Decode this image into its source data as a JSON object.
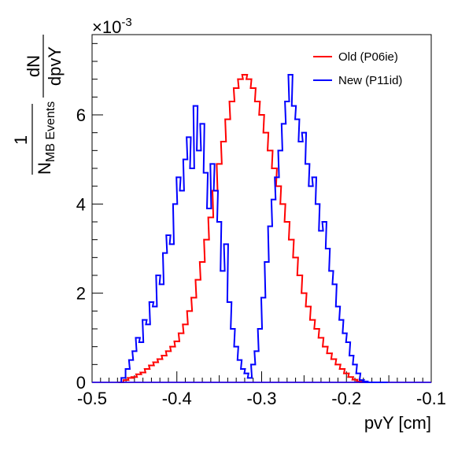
{
  "chart_data": {
    "type": "line",
    "style": "step-histogram",
    "xlabel": "pvY [cm]",
    "ylabel": "1 / N_MB Events · dN/dpvY",
    "ylabel_parts": {
      "one": "1",
      "n": "N",
      "n_sub": "MB Events",
      "dN": "dN",
      "dpvY": "dpvY"
    },
    "y_multiplier": "×10⁻³",
    "y_multiplier_parts": {
      "times": "×10",
      "exp": "-3"
    },
    "xlim": [
      -0.5,
      -0.1
    ],
    "ylim": [
      0,
      0.0078
    ],
    "x_ticks": [
      -0.5,
      -0.4,
      -0.3,
      -0.2,
      -0.1
    ],
    "x_tick_labels": [
      "-0.5",
      "-0.4",
      "-0.3",
      "-0.2",
      "-0.1"
    ],
    "y_ticks": [
      0,
      0.002,
      0.004,
      0.006
    ],
    "y_tick_labels": [
      "0",
      "2",
      "4",
      "6"
    ],
    "grid": false,
    "legend_position": "top-right",
    "series": [
      {
        "name": "Old (P06ie)",
        "color": "#ff0000",
        "x": [
          -0.466,
          -0.46,
          -0.455,
          -0.45,
          -0.445,
          -0.44,
          -0.435,
          -0.43,
          -0.425,
          -0.42,
          -0.415,
          -0.41,
          -0.405,
          -0.4,
          -0.395,
          -0.39,
          -0.385,
          -0.38,
          -0.375,
          -0.37,
          -0.365,
          -0.36,
          -0.355,
          -0.35,
          -0.345,
          -0.34,
          -0.335,
          -0.33,
          -0.325,
          -0.32,
          -0.315,
          -0.31,
          -0.305,
          -0.3,
          -0.295,
          -0.29,
          -0.285,
          -0.28,
          -0.275,
          -0.27,
          -0.265,
          -0.26,
          -0.255,
          -0.25,
          -0.245,
          -0.24,
          -0.235,
          -0.23,
          -0.225,
          -0.22,
          -0.215,
          -0.21,
          -0.205,
          -0.2,
          -0.195,
          -0.19,
          -0.185,
          -0.18
        ],
        "y": [
          0,
          5e-05,
          0.0001,
          0.00012,
          0.00018,
          0.00022,
          0.0003,
          0.00038,
          0.00045,
          0.00052,
          0.0006,
          0.0007,
          0.0008,
          0.00092,
          0.0011,
          0.0013,
          0.0016,
          0.0019,
          0.0023,
          0.0027,
          0.0032,
          0.0037,
          0.0043,
          0.0049,
          0.0054,
          0.0059,
          0.0063,
          0.0066,
          0.0068,
          0.0069,
          0.0068,
          0.0066,
          0.0063,
          0.006,
          0.0056,
          0.0052,
          0.0048,
          0.0044,
          0.004,
          0.0036,
          0.0032,
          0.0028,
          0.0024,
          0.002,
          0.0017,
          0.0014,
          0.0012,
          0.001,
          0.0008,
          0.00065,
          0.00052,
          0.0004,
          0.0003,
          0.0002,
          0.00012,
          6e-05,
          2e-05,
          0
        ]
      },
      {
        "name": "New (P11id)",
        "color": "#0000ff",
        "x": [
          -0.463,
          -0.458,
          -0.454,
          -0.45,
          -0.446,
          -0.442,
          -0.438,
          -0.434,
          -0.43,
          -0.426,
          -0.422,
          -0.418,
          -0.414,
          -0.41,
          -0.406,
          -0.402,
          -0.398,
          -0.394,
          -0.39,
          -0.386,
          -0.382,
          -0.378,
          -0.374,
          -0.37,
          -0.366,
          -0.362,
          -0.358,
          -0.354,
          -0.35,
          -0.346,
          -0.342,
          -0.338,
          -0.334,
          -0.33,
          -0.326,
          -0.322,
          -0.318,
          -0.314,
          -0.31,
          -0.306,
          -0.302,
          -0.298,
          -0.294,
          -0.29,
          -0.286,
          -0.282,
          -0.278,
          -0.274,
          -0.27,
          -0.266,
          -0.262,
          -0.258,
          -0.254,
          -0.25,
          -0.246,
          -0.242,
          -0.238,
          -0.234,
          -0.23,
          -0.226,
          -0.222,
          -0.218,
          -0.214,
          -0.21,
          -0.206,
          -0.202,
          -0.198,
          -0.194,
          -0.19,
          -0.186,
          -0.182,
          -0.178,
          -0.174,
          -0.17,
          -0.166,
          -0.162,
          -0.158,
          -0.154
        ],
        "y": [
          0.0001,
          0.0003,
          0.0005,
          0.0007,
          0.001,
          0.0009,
          0.0014,
          0.0013,
          0.0018,
          0.0017,
          0.0024,
          0.0022,
          0.0029,
          0.0033,
          0.0031,
          0.004,
          0.0046,
          0.0043,
          0.005,
          0.0055,
          0.0048,
          0.0062,
          0.0052,
          0.0058,
          0.0047,
          0.0039,
          0.0049,
          0.0043,
          0.0036,
          0.0025,
          0.0031,
          0.0018,
          0.0012,
          0.0008,
          0.0005,
          0.0003,
          0.0002,
          0.0001,
          0.0004,
          0.0007,
          0.0012,
          0.0019,
          0.0027,
          0.0035,
          0.0041,
          0.0046,
          0.0052,
          0.0058,
          0.0063,
          0.0069,
          0.0062,
          0.0059,
          0.0054,
          0.0056,
          0.0049,
          0.0044,
          0.0046,
          0.004,
          0.0034,
          0.0036,
          0.003,
          0.0025,
          0.0022,
          0.0017,
          0.0014,
          0.0011,
          0.0009,
          0.0006,
          0.0004,
          0.0002,
          5e-05,
          2e-05,
          0,
          0,
          0,
          0,
          0,
          0
        ]
      }
    ]
  }
}
